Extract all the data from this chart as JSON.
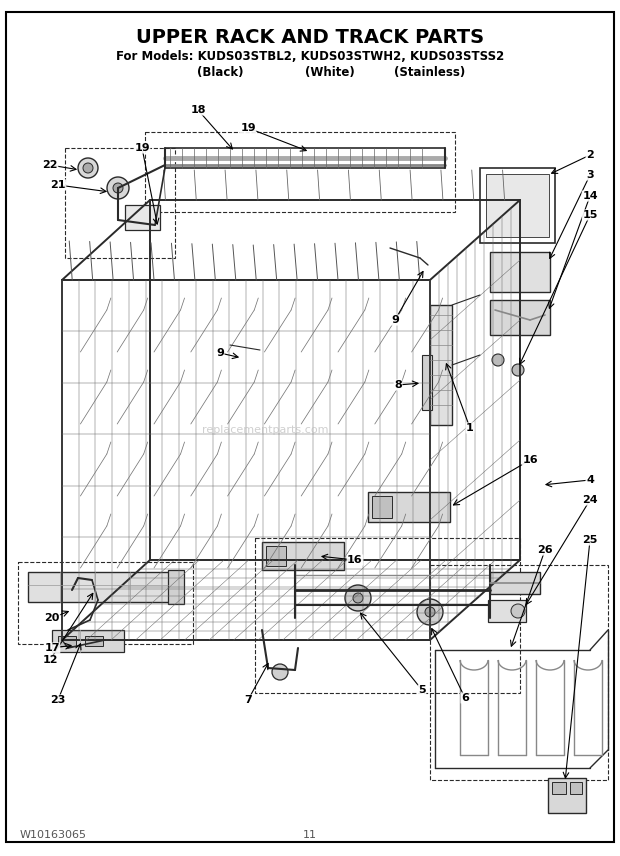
{
  "title_line1": "UPPER RACK AND TRACK PARTS",
  "title_line2": "For Models: KUDS03STBL2, KUDS03STWH2, KUDS03STSS2",
  "title_line3_black": "(Black)",
  "title_line3_white": "(White)",
  "title_line3_stainless": "(Stainless)",
  "footer_left": "W10163065",
  "footer_center": "11",
  "bg_color": "#ffffff",
  "watermark": "replacementparts.com",
  "wm_color": "#bbbbbb"
}
